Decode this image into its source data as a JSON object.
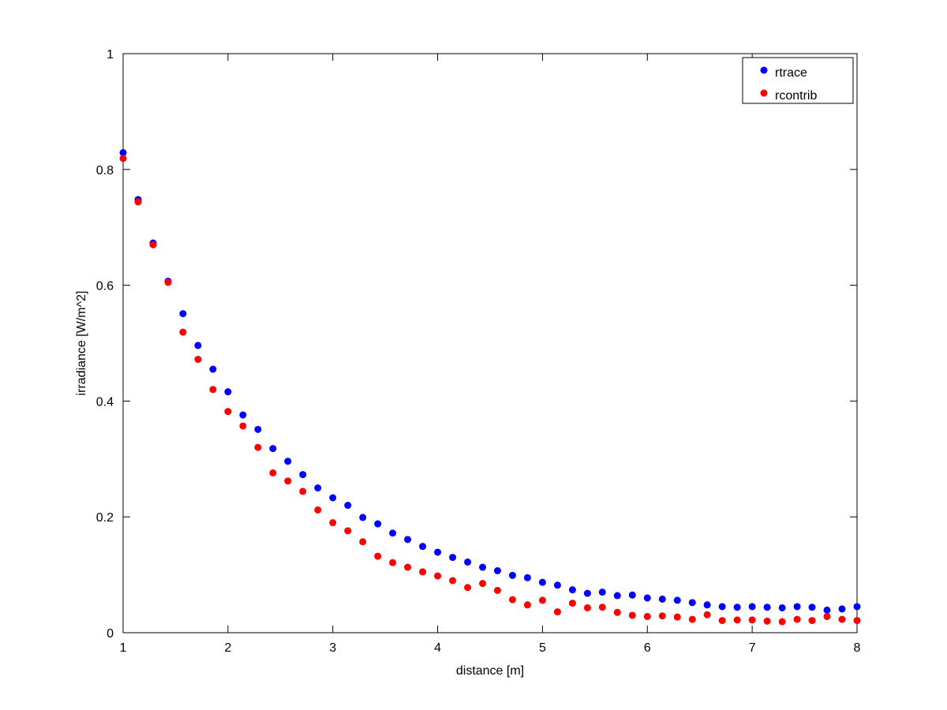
{
  "chart_data": {
    "type": "scatter",
    "title": "",
    "xlabel": "distance [m]",
    "ylabel": "irradiance [W/m^2]",
    "xlim": [
      1,
      8
    ],
    "ylim": [
      0,
      1
    ],
    "xticks": [
      "1",
      "2",
      "3",
      "4",
      "5",
      "6",
      "7",
      "8"
    ],
    "yticks": [
      "0",
      "0.2",
      "0.4",
      "0.6",
      "0.8",
      "1"
    ],
    "grid": false,
    "legend_position": "top-right",
    "x": [
      1.0,
      1.143,
      1.286,
      1.429,
      1.571,
      1.714,
      1.857,
      2.0,
      2.143,
      2.286,
      2.429,
      2.571,
      2.714,
      2.857,
      3.0,
      3.143,
      3.286,
      3.429,
      3.571,
      3.714,
      3.857,
      4.0,
      4.143,
      4.286,
      4.429,
      4.571,
      4.714,
      4.857,
      5.0,
      5.143,
      5.286,
      5.429,
      5.571,
      5.714,
      5.857,
      6.0,
      6.143,
      6.286,
      6.429,
      6.571,
      6.714,
      6.857,
      7.0,
      7.143,
      7.286,
      7.429,
      7.571,
      7.714,
      7.857,
      8.0
    ],
    "series": [
      {
        "name": "rtrace",
        "color": "#0000ff",
        "values": [
          0.829,
          0.748,
          0.673,
          0.607,
          0.551,
          0.496,
          0.455,
          0.416,
          0.376,
          0.351,
          0.318,
          0.296,
          0.273,
          0.25,
          0.233,
          0.22,
          0.199,
          0.188,
          0.172,
          0.161,
          0.149,
          0.139,
          0.13,
          0.122,
          0.113,
          0.107,
          0.099,
          0.095,
          0.087,
          0.082,
          0.074,
          0.068,
          0.07,
          0.064,
          0.065,
          0.06,
          0.058,
          0.056,
          0.052,
          0.048,
          0.045,
          0.044,
          0.045,
          0.044,
          0.043,
          0.045,
          0.044,
          0.039,
          0.041,
          0.045
        ]
      },
      {
        "name": "rcontrib",
        "color": "#ff0000",
        "values": [
          0.819,
          0.744,
          0.67,
          0.605,
          0.519,
          0.472,
          0.42,
          0.382,
          0.357,
          0.32,
          0.276,
          0.262,
          0.244,
          0.212,
          0.19,
          0.176,
          0.157,
          0.132,
          0.121,
          0.113,
          0.105,
          0.098,
          0.09,
          0.078,
          0.085,
          0.073,
          0.057,
          0.048,
          0.056,
          0.036,
          0.051,
          0.043,
          0.044,
          0.035,
          0.03,
          0.028,
          0.029,
          0.027,
          0.023,
          0.031,
          0.021,
          0.022,
          0.022,
          0.02,
          0.019,
          0.023,
          0.021,
          0.028,
          0.023,
          0.021
        ]
      }
    ]
  }
}
